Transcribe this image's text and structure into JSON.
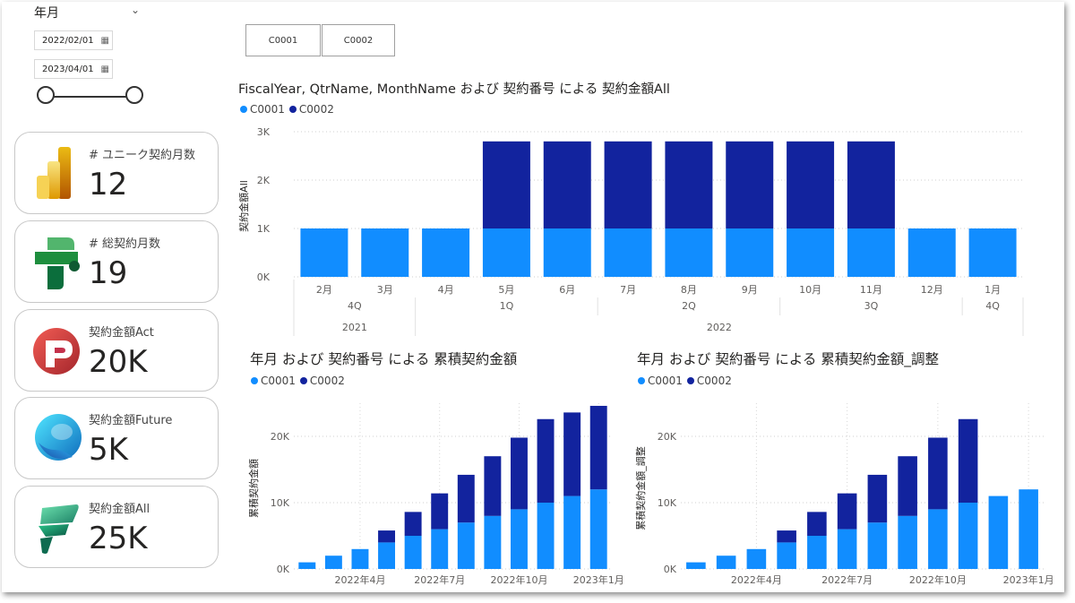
{
  "slicer": {
    "title": "年月",
    "start_date": "2022/02/01",
    "end_date": "2023/04/01"
  },
  "cards": [
    {
      "label": "# ユニーク契約月数",
      "value": "12",
      "icon": "power-bi-logo-icon"
    },
    {
      "label": "# 総契約月数",
      "value": "19",
      "icon": "data-factory-logo-icon"
    },
    {
      "label": "契約金額Act",
      "value": "20K",
      "icon": "power-apps-logo-icon"
    },
    {
      "label": "契約金額Future",
      "value": "5K",
      "icon": "azure-logo-icon"
    },
    {
      "label": "契約金額All",
      "value": "25K",
      "icon": "fabric-logo-icon"
    }
  ],
  "buttons": [
    "C0001",
    "C0002"
  ],
  "colors": {
    "c0001": "#118DFF",
    "c0002": "#12239E"
  },
  "chart_data": [
    {
      "type": "bar",
      "stacked": true,
      "title": "FiscalYear, QtrName, MonthName および 契約番号 による 契約金額All",
      "ylabel": "契約金額All",
      "ylim": [
        0,
        3000
      ],
      "y_ticks": [
        "0K",
        "1K",
        "2K",
        "3K"
      ],
      "categories": [
        "2月",
        "3月",
        "4月",
        "5月",
        "6月",
        "7月",
        "8月",
        "9月",
        "10月",
        "11月",
        "12月",
        "1月"
      ],
      "quarter_labels": [
        {
          "label": "4Q",
          "from": 0,
          "to": 1
        },
        {
          "label": "1Q",
          "from": 2,
          "to": 4
        },
        {
          "label": "2Q",
          "from": 5,
          "to": 7
        },
        {
          "label": "3Q",
          "from": 8,
          "to": 10
        },
        {
          "label": "4Q",
          "from": 11,
          "to": 11
        }
      ],
      "year_labels": [
        {
          "label": "2021",
          "from": 0,
          "to": 1
        },
        {
          "label": "2022",
          "from": 2,
          "to": 11
        }
      ],
      "series": [
        {
          "name": "C0001",
          "values": [
            1000,
            1000,
            1000,
            1000,
            1000,
            1000,
            1000,
            1000,
            1000,
            1000,
            1000,
            1000
          ]
        },
        {
          "name": "C0002",
          "values": [
            0,
            0,
            0,
            1800,
            1800,
            1800,
            1800,
            1800,
            1800,
            1800,
            0,
            0
          ]
        }
      ],
      "legend": "top-left",
      "grid": true
    },
    {
      "type": "bar",
      "stacked": true,
      "title": "年月 および 契約番号 による 累積契約金額",
      "ylabel": "累積契約金額",
      "ylim": [
        0,
        25000
      ],
      "y_ticks": [
        "0K",
        "10K",
        "20K"
      ],
      "x_ticks": [
        "2022年4月",
        "2022年7月",
        "2022年10月",
        "2023年1月"
      ],
      "series": [
        {
          "name": "C0001",
          "values": [
            1000,
            2000,
            3000,
            4000,
            5000,
            6000,
            7000,
            8000,
            9000,
            10000,
            11000,
            12000
          ]
        },
        {
          "name": "C0002",
          "values": [
            0,
            0,
            0,
            1800,
            3600,
            5400,
            7200,
            9000,
            10800,
            12600,
            12600,
            12600
          ]
        }
      ],
      "legend": "top-left",
      "grid": true
    },
    {
      "type": "bar",
      "stacked": true,
      "title": "年月 および 契約番号 による 累積契約金額_調整",
      "ylabel": "累積契約金額_調整",
      "ylim": [
        0,
        25000
      ],
      "y_ticks": [
        "0K",
        "10K",
        "20K"
      ],
      "x_ticks": [
        "2022年4月",
        "2022年7月",
        "2022年10月",
        "2023年1月"
      ],
      "series": [
        {
          "name": "C0001",
          "values": [
            1000,
            2000,
            3000,
            4000,
            5000,
            6000,
            7000,
            8000,
            9000,
            10000,
            11000,
            12000
          ]
        },
        {
          "name": "C0002",
          "values": [
            0,
            0,
            0,
            1800,
            3600,
            5400,
            7200,
            9000,
            10800,
            12600,
            0,
            0
          ]
        }
      ],
      "legend": "top-left",
      "grid": true
    }
  ]
}
